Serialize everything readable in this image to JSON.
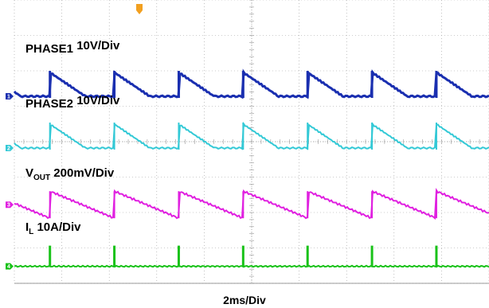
{
  "chart_data": {
    "type": "line",
    "title": "",
    "xlabel": "2ms/Div",
    "ylabel": "",
    "grid": true,
    "horizontal_divisions": 10,
    "vertical_divisions": 8,
    "trigger_marker_color": "#f2a020",
    "pulse_period_div": 1.357,
    "first_pulse_div": 1.0,
    "series": [
      {
        "name_main": "PHASE1",
        "name_sub": "",
        "scale": "10V/Div",
        "channel": "1",
        "color": "#1a2fb0",
        "waveform": "sawtooth-spike",
        "ref_div": 2.72
      },
      {
        "name_main": "PHASE2",
        "name_sub": "",
        "scale": "10V/Div",
        "channel": "2",
        "color": "#33c9d6",
        "waveform": "sawtooth-spike",
        "ref_div": 4.18
      },
      {
        "name_main": "V",
        "name_sub": "OUT",
        "scale": "200mV/Div",
        "channel": "3",
        "color": "#e020e0",
        "waveform": "sawtooth-ripple",
        "ref_div": 5.78
      },
      {
        "name_main": "I",
        "name_sub": "L",
        "scale": "10A/Div",
        "channel": "4",
        "color": "#19c219",
        "waveform": "pulse",
        "ref_div": 7.52
      }
    ]
  }
}
